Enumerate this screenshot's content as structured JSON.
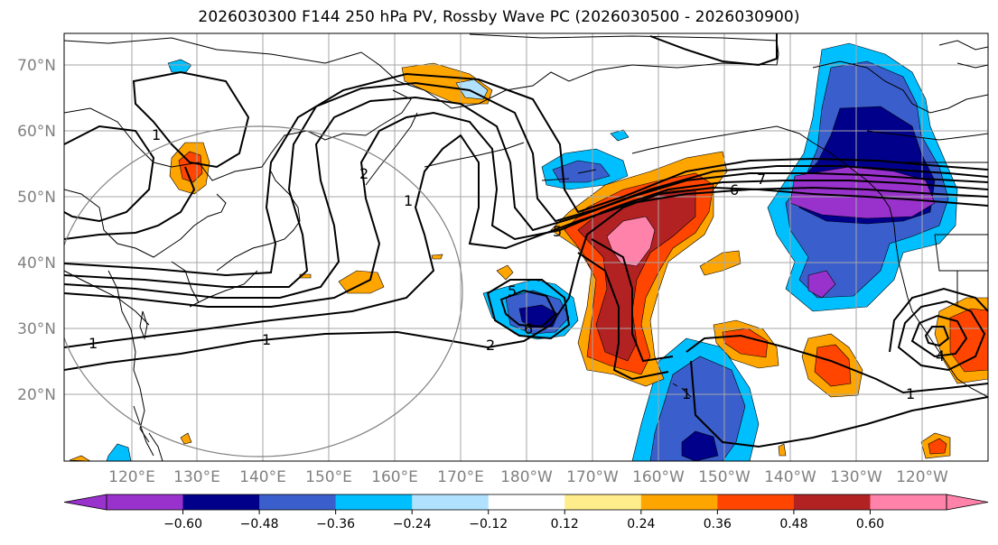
{
  "title": "2026030300 F144 250 hPa PV, Rossby Wave PC (2026030500 - 2026030900)",
  "lat_labels": [
    "70°N",
    "60°N",
    "50°N",
    "40°N",
    "30°N",
    "20°N"
  ],
  "lon_labels": [
    "120°E",
    "130°E",
    "140°E",
    "150°E",
    "160°E",
    "170°E",
    "180°W",
    "170°W",
    "160°W",
    "150°W",
    "140°W",
    "130°W",
    "120°W"
  ],
  "contour_labels": [
    "1",
    "2",
    "1",
    "1",
    "1",
    "1",
    "2",
    "5",
    "6",
    "5",
    "6",
    "7",
    "4",
    "1"
  ],
  "colorbar": {
    "tick_labels": [
      "−0.60",
      "−0.48",
      "−0.36",
      "−0.24",
      "−0.12",
      "0.12",
      "0.24",
      "0.36",
      "0.48",
      "0.60"
    ],
    "colors": [
      "#9932cc",
      "#00008b",
      "#3a5fcd",
      "#00bfff",
      "#b0e2ff",
      "#ffffff",
      "#ffec8b",
      "#ffa500",
      "#ff4500",
      "#b22222",
      "#ff82ab"
    ]
  },
  "chart_data": {
    "type": "heatmap",
    "title": "2026030300 F144 250 hPa PV, Rossby Wave PC (2026030500 - 2026030900)",
    "lon_range": [
      "112°E",
      "112°W"
    ],
    "lat_range": [
      10,
      75
    ],
    "lat_ticks": [
      70,
      60,
      50,
      40,
      30,
      20
    ],
    "lon_ticks": [
      "120°E",
      "130°E",
      "140°E",
      "150°E",
      "160°E",
      "170°E",
      "180°W",
      "170°W",
      "160°W",
      "150°W",
      "140°W",
      "130°W",
      "120°W"
    ],
    "fill_levels": [
      -0.6,
      -0.48,
      -0.36,
      -0.24,
      -0.12,
      0.12,
      0.24,
      0.36,
      0.48,
      0.6
    ],
    "contour_values": [
      1,
      2,
      3,
      4,
      5,
      6,
      7
    ],
    "grid": true,
    "colorbar_placement": "bottom"
  }
}
